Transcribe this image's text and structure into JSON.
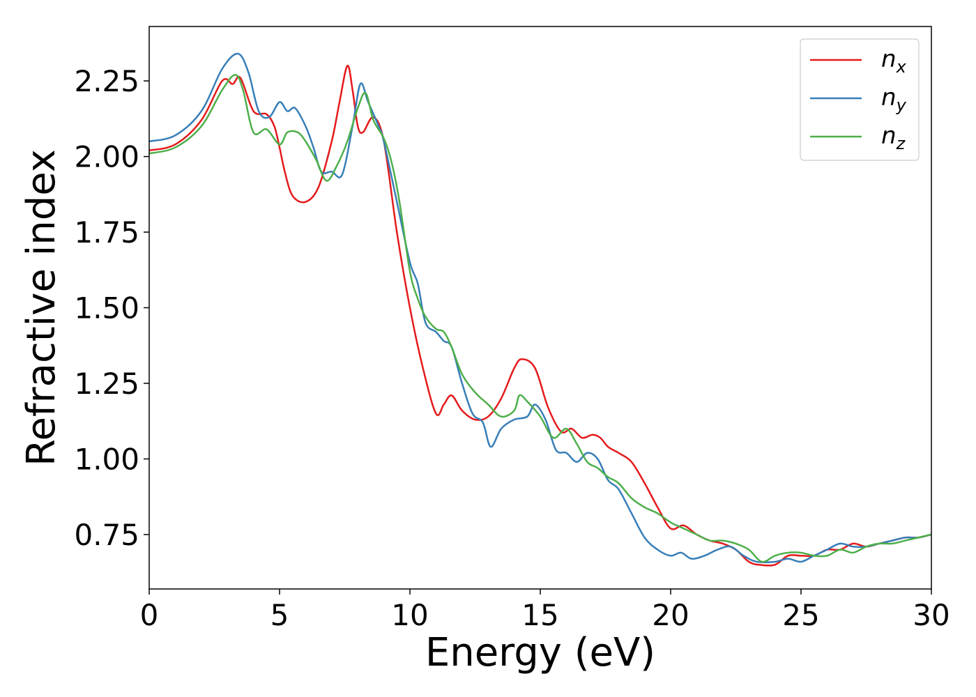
{
  "chart_data": {
    "type": "line",
    "xlabel": "Energy (eV)",
    "ylabel": "Refractive index",
    "xlim": [
      0,
      30
    ],
    "ylim": [
      0.57,
      2.43
    ],
    "xticks": [
      0,
      5,
      10,
      15,
      20,
      25,
      30
    ],
    "yticks": [
      0.75,
      1.0,
      1.25,
      1.5,
      1.75,
      2.0,
      2.25
    ],
    "ytick_labels": [
      "0.75",
      "1.00",
      "1.25",
      "1.50",
      "1.75",
      "2.00",
      "2.25"
    ],
    "grid": false,
    "legend_position": "top-right",
    "series": [
      {
        "name": "n",
        "sub": "x",
        "color": "#e41a1c",
        "points": [
          [
            0,
            2.02
          ],
          [
            1,
            2.04
          ],
          [
            2,
            2.12
          ],
          [
            2.8,
            2.25
          ],
          [
            3.2,
            2.24
          ],
          [
            3.5,
            2.26
          ],
          [
            4,
            2.15
          ],
          [
            4.5,
            2.14
          ],
          [
            4.8,
            2.1
          ],
          [
            5,
            2.03
          ],
          [
            5.2,
            1.95
          ],
          [
            5.5,
            1.87
          ],
          [
            6,
            1.85
          ],
          [
            6.5,
            1.9
          ],
          [
            7,
            2.05
          ],
          [
            7.3,
            2.18
          ],
          [
            7.6,
            2.3
          ],
          [
            7.8,
            2.22
          ],
          [
            8,
            2.1
          ],
          [
            8.2,
            2.08
          ],
          [
            8.6,
            2.13
          ],
          [
            9,
            2.05
          ],
          [
            9.5,
            1.75
          ],
          [
            10,
            1.5
          ],
          [
            10.5,
            1.3
          ],
          [
            11,
            1.15
          ],
          [
            11.3,
            1.18
          ],
          [
            11.6,
            1.21
          ],
          [
            12,
            1.16
          ],
          [
            12.5,
            1.13
          ],
          [
            13,
            1.14
          ],
          [
            13.5,
            1.2
          ],
          [
            14,
            1.3
          ],
          [
            14.3,
            1.33
          ],
          [
            14.8,
            1.3
          ],
          [
            15.3,
            1.17
          ],
          [
            15.8,
            1.09
          ],
          [
            16.2,
            1.1
          ],
          [
            16.6,
            1.07
          ],
          [
            17,
            1.08
          ],
          [
            17.3,
            1.07
          ],
          [
            17.6,
            1.04
          ],
          [
            18,
            1.02
          ],
          [
            18.5,
            0.99
          ],
          [
            19,
            0.92
          ],
          [
            19.5,
            0.84
          ],
          [
            20,
            0.77
          ],
          [
            20.5,
            0.78
          ],
          [
            21,
            0.75
          ],
          [
            21.5,
            0.73
          ],
          [
            22,
            0.72
          ],
          [
            22.5,
            0.7
          ],
          [
            23,
            0.66
          ],
          [
            23.4,
            0.65
          ],
          [
            24,
            0.65
          ],
          [
            24.5,
            0.68
          ],
          [
            25,
            0.68
          ],
          [
            25.5,
            0.68
          ],
          [
            26,
            0.7
          ],
          [
            26.5,
            0.7
          ],
          [
            27,
            0.72
          ],
          [
            27.5,
            0.71
          ],
          [
            28,
            0.72
          ],
          [
            28.5,
            0.73
          ],
          [
            29,
            0.74
          ],
          [
            29.5,
            0.74
          ],
          [
            30,
            0.75
          ]
        ]
      },
      {
        "name": "n",
        "sub": "y",
        "color": "#377eb8",
        "points": [
          [
            0,
            2.05
          ],
          [
            1,
            2.07
          ],
          [
            2,
            2.15
          ],
          [
            2.8,
            2.29
          ],
          [
            3.4,
            2.34
          ],
          [
            3.8,
            2.28
          ],
          [
            4.2,
            2.15
          ],
          [
            4.6,
            2.13
          ],
          [
            5,
            2.18
          ],
          [
            5.3,
            2.15
          ],
          [
            5.6,
            2.16
          ],
          [
            6,
            2.1
          ],
          [
            6.3,
            2.03
          ],
          [
            6.6,
            1.95
          ],
          [
            7,
            1.95
          ],
          [
            7.4,
            1.94
          ],
          [
            7.8,
            2.1
          ],
          [
            8.1,
            2.24
          ],
          [
            8.4,
            2.18
          ],
          [
            8.8,
            2.1
          ],
          [
            9,
            2.05
          ],
          [
            9.5,
            1.85
          ],
          [
            10,
            1.65
          ],
          [
            10.3,
            1.58
          ],
          [
            10.6,
            1.45
          ],
          [
            11,
            1.42
          ],
          [
            11.3,
            1.39
          ],
          [
            11.6,
            1.37
          ],
          [
            12,
            1.25
          ],
          [
            12.4,
            1.15
          ],
          [
            12.8,
            1.12
          ],
          [
            13.1,
            1.04
          ],
          [
            13.5,
            1.1
          ],
          [
            14,
            1.13
          ],
          [
            14.5,
            1.14
          ],
          [
            14.8,
            1.18
          ],
          [
            15.2,
            1.13
          ],
          [
            15.6,
            1.03
          ],
          [
            16,
            1.02
          ],
          [
            16.4,
            0.99
          ],
          [
            16.8,
            1.02
          ],
          [
            17.2,
            1.0
          ],
          [
            17.6,
            0.93
          ],
          [
            18,
            0.9
          ],
          [
            18.5,
            0.82
          ],
          [
            19,
            0.74
          ],
          [
            19.5,
            0.7
          ],
          [
            20,
            0.68
          ],
          [
            20.4,
            0.69
          ],
          [
            20.8,
            0.67
          ],
          [
            21.3,
            0.68
          ],
          [
            21.8,
            0.7
          ],
          [
            22.3,
            0.71
          ],
          [
            22.8,
            0.68
          ],
          [
            23.3,
            0.66
          ],
          [
            24,
            0.66
          ],
          [
            24.5,
            0.67
          ],
          [
            25,
            0.66
          ],
          [
            25.5,
            0.68
          ],
          [
            26,
            0.7
          ],
          [
            26.5,
            0.72
          ],
          [
            27,
            0.71
          ],
          [
            27.5,
            0.71
          ],
          [
            28,
            0.72
          ],
          [
            28.5,
            0.73
          ],
          [
            29,
            0.74
          ],
          [
            29.5,
            0.74
          ],
          [
            30,
            0.75
          ]
        ]
      },
      {
        "name": "n",
        "sub": "z",
        "color": "#4daf4a",
        "points": [
          [
            0,
            2.01
          ],
          [
            1,
            2.03
          ],
          [
            2,
            2.1
          ],
          [
            2.8,
            2.22
          ],
          [
            3.3,
            2.27
          ],
          [
            3.6,
            2.22
          ],
          [
            4,
            2.08
          ],
          [
            4.5,
            2.09
          ],
          [
            5,
            2.04
          ],
          [
            5.3,
            2.08
          ],
          [
            5.7,
            2.08
          ],
          [
            6,
            2.05
          ],
          [
            6.4,
            1.99
          ],
          [
            6.8,
            1.92
          ],
          [
            7.2,
            1.97
          ],
          [
            7.6,
            2.05
          ],
          [
            8,
            2.16
          ],
          [
            8.3,
            2.21
          ],
          [
            8.6,
            2.12
          ],
          [
            9,
            2.06
          ],
          [
            9.3,
            1.98
          ],
          [
            9.6,
            1.85
          ],
          [
            10,
            1.62
          ],
          [
            10.3,
            1.53
          ],
          [
            10.6,
            1.47
          ],
          [
            11,
            1.43
          ],
          [
            11.3,
            1.42
          ],
          [
            11.6,
            1.37
          ],
          [
            12,
            1.28
          ],
          [
            12.5,
            1.22
          ],
          [
            13,
            1.18
          ],
          [
            13.5,
            1.14
          ],
          [
            14,
            1.16
          ],
          [
            14.2,
            1.21
          ],
          [
            14.5,
            1.19
          ],
          [
            15,
            1.14
          ],
          [
            15.5,
            1.07
          ],
          [
            16,
            1.1
          ],
          [
            16.4,
            1.05
          ],
          [
            16.8,
            0.99
          ],
          [
            17.2,
            0.97
          ],
          [
            17.6,
            0.94
          ],
          [
            18,
            0.92
          ],
          [
            18.5,
            0.87
          ],
          [
            19,
            0.84
          ],
          [
            19.5,
            0.82
          ],
          [
            20,
            0.79
          ],
          [
            20.5,
            0.77
          ],
          [
            21,
            0.75
          ],
          [
            21.5,
            0.73
          ],
          [
            22,
            0.73
          ],
          [
            22.5,
            0.72
          ],
          [
            23,
            0.7
          ],
          [
            23.5,
            0.66
          ],
          [
            24,
            0.68
          ],
          [
            24.5,
            0.69
          ],
          [
            25,
            0.69
          ],
          [
            25.5,
            0.68
          ],
          [
            26,
            0.68
          ],
          [
            26.5,
            0.7
          ],
          [
            27,
            0.69
          ],
          [
            27.5,
            0.71
          ],
          [
            28,
            0.72
          ],
          [
            28.5,
            0.72
          ],
          [
            29,
            0.73
          ],
          [
            29.5,
            0.74
          ],
          [
            30,
            0.75
          ]
        ]
      }
    ]
  }
}
